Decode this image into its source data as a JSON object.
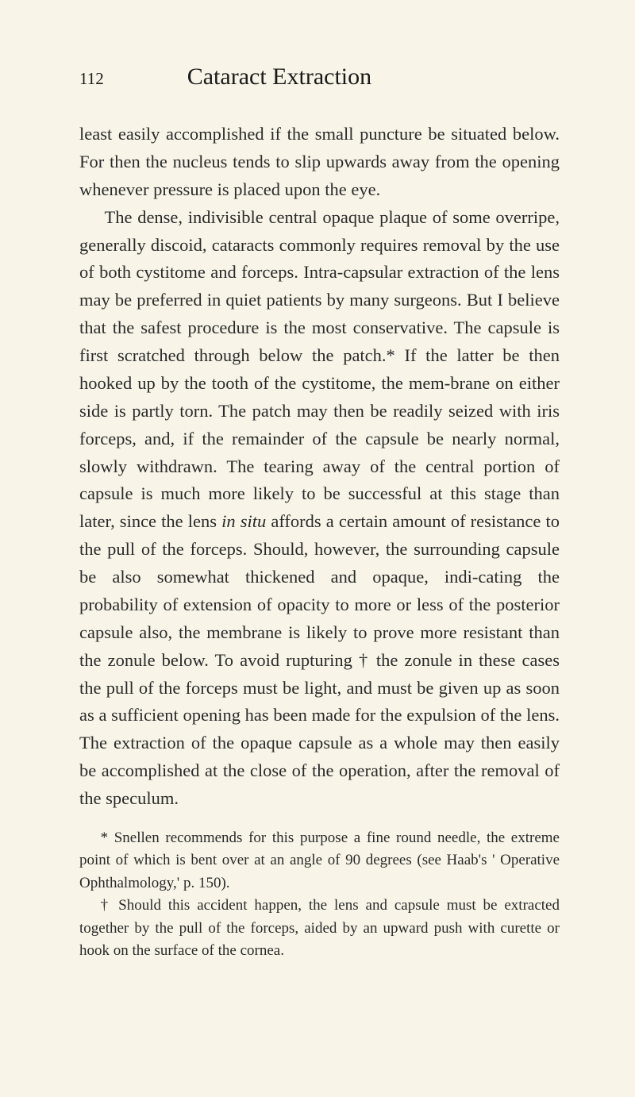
{
  "page": {
    "number": "112",
    "chapter_title": "Cataract Extraction",
    "background_color": "#f8f5e8",
    "text_color": "#2a2a2a",
    "body_fontsize": 22.5,
    "footnote_fontsize": 19
  },
  "paragraphs": {
    "p1": "least easily accomplished if the small puncture be situated below. For then the nucleus tends to slip upwards away from the opening whenever pressure is placed upon the eye.",
    "p2_start": "The dense, indivisible central opaque plaque of some overripe, generally discoid, cataracts commonly requires removal by the use of both cystitome and forceps. Intra-capsular extraction of the lens may be preferred in quiet patients by many surgeons. But I believe that the safest procedure is the most conservative. The capsule is first scratched through below the patch.* If the latter be then hooked up by the tooth of the cystitome, the mem-brane on either side is partly torn. The patch may then be readily seized with iris forceps, and, if the remainder of the capsule be nearly normal, slowly withdrawn. The tearing away of the central portion of capsule is much more likely to be successful at this stage than later, since the lens ",
    "p2_italic": "in situ",
    "p2_end": " affords a certain amount of resistance to the pull of the forceps. Should, however, the surrounding capsule be also somewhat thickened and opaque, indi-cating the probability of extension of opacity to more or less of the posterior capsule also, the membrane is likely to prove more resistant than the zonule below. To avoid rupturing † the zonule in these cases the pull of the forceps must be light, and must be given up as soon as a sufficient opening has been made for the expulsion of the lens. The extraction of the opaque capsule as a whole may then easily be accomplished at the close of the operation, after the removal of the speculum."
  },
  "footnotes": {
    "fn1": "* Snellen recommends for this purpose a fine round needle, the extreme point of which is bent over at an angle of 90 degrees (see Haab's ' Operative Ophthalmology,' p. 150).",
    "fn2": "† Should this accident happen, the lens and capsule must be extracted together by the pull of the forceps, aided by an upward push with curette or hook on the surface of the cornea."
  }
}
